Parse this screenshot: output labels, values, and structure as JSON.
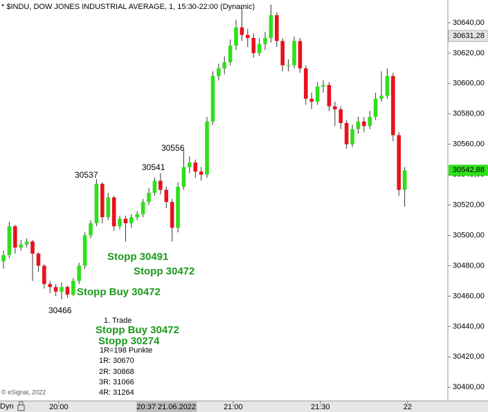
{
  "chart_data": {
    "type": "candlestick",
    "title": "* $INDU, DOW JONES INDUSTRIAL AVERAGE, 1, 15:30-22:00 (Dynamic)",
    "source": "© eSignal, 2022",
    "mode": "Dyn",
    "up_color": "#2fe01a",
    "down_color": "#e8121c",
    "x": [
      1181,
      1183,
      1185,
      1187,
      1189,
      1191,
      1193,
      1195,
      1197,
      1199,
      1201,
      1203,
      1205,
      1207,
      1209,
      1211,
      1213,
      1215,
      1217,
      1219,
      1221,
      1223,
      1225,
      1227,
      1229,
      1231,
      1233,
      1235,
      1237,
      1239,
      1241,
      1243,
      1245,
      1247,
      1249,
      1251,
      1253,
      1255,
      1257,
      1259,
      1261,
      1263,
      1265,
      1267,
      1269,
      1271,
      1273,
      1275,
      1277,
      1279,
      1281,
      1283,
      1285,
      1287,
      1289,
      1291,
      1293,
      1295,
      1297,
      1299,
      1301,
      1303,
      1305,
      1307,
      1309,
      1311,
      1313,
      1315,
      1317,
      1319
    ],
    "open": [
      30483,
      30487,
      30506,
      30492,
      30494,
      30496,
      30488,
      30480,
      30468,
      30466,
      30463,
      30466,
      30461,
      30470,
      30480,
      30500,
      30508,
      30534,
      30512,
      30525,
      30506,
      30511,
      30508,
      30512,
      30514,
      30522,
      30528,
      30536,
      30530,
      30522,
      30505,
      30532,
      30545,
      30548,
      30542,
      30540,
      30575,
      30605,
      30610,
      30614,
      30625,
      30637,
      30632,
      30630,
      30620,
      30626,
      30630,
      30645,
      30628,
      30612,
      30612,
      30628,
      30610,
      30590,
      30588,
      30598,
      30599,
      30585,
      30583,
      30574,
      30560,
      30570,
      30575,
      30572,
      30578,
      30590,
      30592,
      30605,
      30566,
      30530
    ],
    "high": [
      30490,
      30509,
      30507,
      30497,
      30498,
      30497,
      30489,
      30481,
      30470,
      30468,
      30469,
      30467,
      30472,
      30482,
      30502,
      30510,
      30537,
      30535,
      30528,
      30526,
      30513,
      30513,
      30514,
      30516,
      30524,
      30531,
      30538,
      30541,
      30532,
      30524,
      30535,
      30556,
      30552,
      30550,
      30545,
      30578,
      30608,
      30613,
      30618,
      30629,
      30642,
      30650,
      30636,
      30633,
      30630,
      30634,
      30652,
      30647,
      30630,
      30616,
      30631,
      30630,
      30612,
      30594,
      30601,
      30602,
      30601,
      30588,
      30585,
      30576,
      30573,
      30578,
      30578,
      30582,
      30594,
      30608,
      30610,
      30607,
      30568,
      30545
    ],
    "low": [
      30478,
      30485,
      30488,
      30490,
      30492,
      30470,
      30476,
      30465,
      30462,
      30460,
      30458,
      30459,
      30460,
      30468,
      30478,
      30498,
      30506,
      30508,
      30510,
      30503,
      30504,
      30496,
      30505,
      30510,
      30512,
      30520,
      30526,
      30527,
      30518,
      30496,
      30502,
      30530,
      30541,
      30538,
      30536,
      30538,
      30573,
      30602,
      30606,
      30612,
      30622,
      30628,
      30624,
      30617,
      30618,
      30622,
      30627,
      30624,
      30608,
      30608,
      30610,
      30607,
      30586,
      30583,
      30586,
      30594,
      30582,
      30572,
      30570,
      30557,
      30558,
      30567,
      30568,
      30570,
      30576,
      30588,
      30590,
      30562,
      30526,
      30519
    ],
    "close": [
      30487,
      30506,
      30492,
      30494,
      30496,
      30488,
      30480,
      30468,
      30466,
      30463,
      30466,
      30461,
      30470,
      30480,
      30500,
      30508,
      30534,
      30512,
      30525,
      30506,
      30511,
      30508,
      30512,
      30514,
      30522,
      30528,
      30536,
      30530,
      30522,
      30505,
      30532,
      30545,
      30548,
      30542,
      30540,
      30575,
      30605,
      30610,
      30614,
      30625,
      30637,
      30632,
      30630,
      30620,
      30626,
      30630,
      30645,
      30628,
      30612,
      30612,
      30628,
      30610,
      30590,
      30588,
      30598,
      30599,
      30585,
      30583,
      30574,
      30560,
      30570,
      30575,
      30572,
      30578,
      30590,
      30592,
      30605,
      30566,
      30530,
      30542.88
    ],
    "xlim": [
      1179.8,
      1333.8
    ],
    "xticks": [
      {
        "value": 1200,
        "label": "20:00"
      },
      {
        "value": 1260,
        "label": "21:00"
      },
      {
        "value": 1290,
        "label": "21:30"
      },
      {
        "value": 1320,
        "label": "22"
      }
    ],
    "ylim": [
      30391,
      30655
    ],
    "yticks": [
      {
        "value": 30400,
        "label": "30400,00"
      },
      {
        "value": 30420,
        "label": "30420,00"
      },
      {
        "value": 30440,
        "label": "30440,00"
      },
      {
        "value": 30460,
        "label": "30460,00"
      },
      {
        "value": 30480,
        "label": "30480,00"
      },
      {
        "value": 30500,
        "label": "30500,00"
      },
      {
        "value": 30520,
        "label": "30520,00"
      },
      {
        "value": 30540,
        "label": "30540,00"
      },
      {
        "value": 30560,
        "label": "30560,00"
      },
      {
        "value": 30580,
        "label": "30580,00"
      },
      {
        "value": 30600,
        "label": "30600,00"
      },
      {
        "value": 30620,
        "label": "30620,00"
      },
      {
        "value": 30640,
        "label": "30640,00"
      }
    ],
    "crosshair_price": {
      "value": 30631.28,
      "label": "30631,28"
    },
    "last_price": {
      "value": 30542.88,
      "label": "30542,88"
    },
    "crosshair_time": {
      "value": 1237,
      "label": "20:37 21.06.2022"
    },
    "annotations": [
      "30537",
      "30541",
      "30556",
      "30466",
      "Stopp 30491",
      "Stopp 30472",
      "Stopp Buy 30472",
      "1. Trade",
      "Stopp Buy 30472",
      "Stopp 30274",
      "1R=198 Punkte",
      "1R: 30670",
      "2R: 30868",
      "3R: 31066",
      "4R: 31264"
    ]
  }
}
